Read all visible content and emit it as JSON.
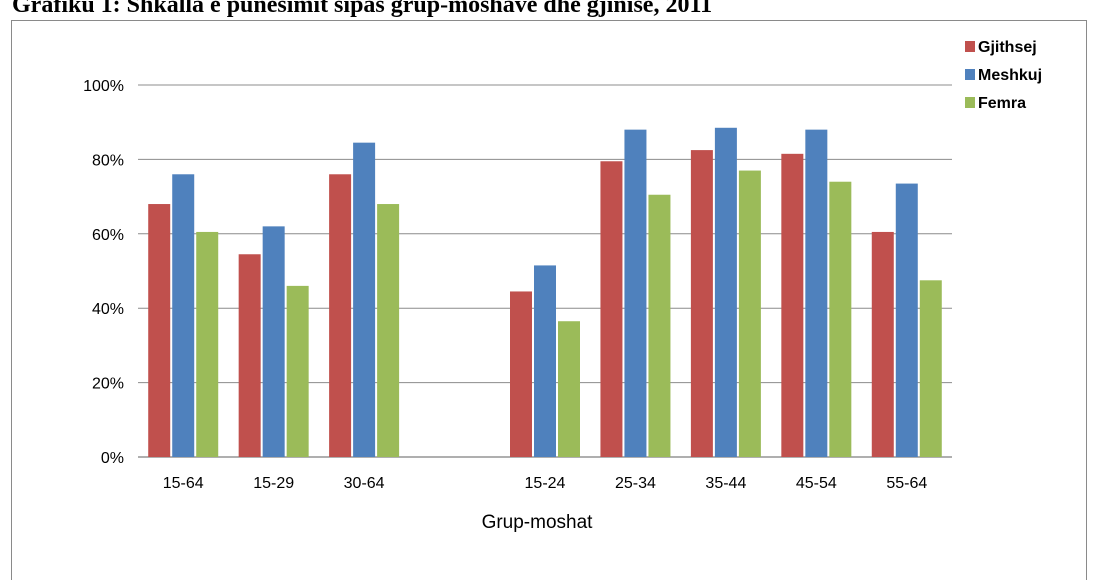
{
  "chart_data": {
    "type": "bar",
    "title": "Grafiku 1: Shkalla e punësimit sipas grup-moshave dhe gjinisë, 2011",
    "xlabel": "Grup-moshat",
    "ylabel": "",
    "ylim": [
      0,
      100
    ],
    "y_ticks": [
      "0%",
      "20%",
      "40%",
      "60%",
      "80%",
      "100%"
    ],
    "y_tick_values": [
      0,
      20,
      40,
      60,
      80,
      100
    ],
    "grid": true,
    "legend_position": "top-right",
    "categories": [
      "15-64",
      "15-29",
      "30-64",
      "",
      "15-24",
      "25-34",
      "35-44",
      "45-54",
      "55-64"
    ],
    "series": [
      {
        "name": "Gjithsej",
        "color": "#c0504d",
        "values": [
          68,
          54.5,
          76,
          null,
          44.5,
          79.5,
          82.5,
          81.5,
          60.5
        ]
      },
      {
        "name": "Meshkuj",
        "color": "#4f81bd",
        "values": [
          76,
          62,
          84.5,
          null,
          51.5,
          88,
          88.5,
          88,
          73.5
        ]
      },
      {
        "name": "Femra",
        "color": "#9bbb59",
        "values": [
          60.5,
          46,
          68,
          null,
          36.5,
          70.5,
          77,
          74,
          47.5
        ]
      }
    ]
  }
}
